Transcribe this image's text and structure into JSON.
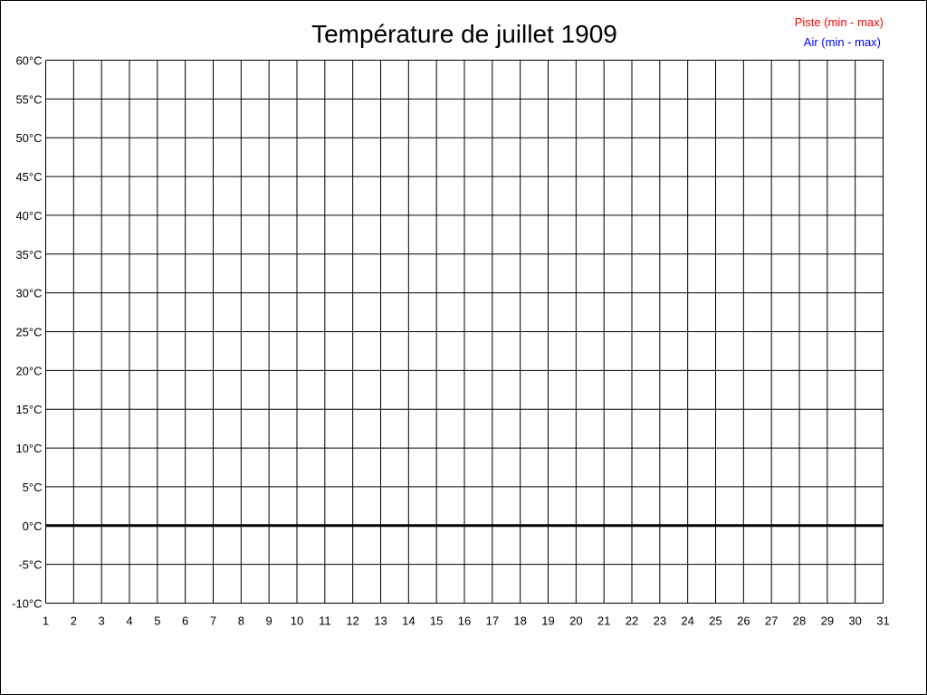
{
  "chart_data": {
    "type": "line",
    "title": "Température de juillet 1909",
    "xlabel": "",
    "ylabel": "",
    "x_ticks": [
      1,
      2,
      3,
      4,
      5,
      6,
      7,
      8,
      9,
      10,
      11,
      12,
      13,
      14,
      15,
      16,
      17,
      18,
      19,
      20,
      21,
      22,
      23,
      24,
      25,
      26,
      27,
      28,
      29,
      30,
      31
    ],
    "xlim": [
      1,
      31
    ],
    "ylim": [
      -10,
      60
    ],
    "y_ticks": [
      -10,
      -5,
      0,
      5,
      10,
      15,
      20,
      25,
      30,
      35,
      40,
      45,
      50,
      55,
      60
    ],
    "y_tick_suffix": "°C",
    "grid": true,
    "legend_position": "top-right",
    "series": [
      {
        "name": "Piste (min - max)",
        "color": "#ff0000",
        "values": []
      },
      {
        "name": "Air (min - max)",
        "color": "#0000ff",
        "values": []
      }
    ]
  }
}
